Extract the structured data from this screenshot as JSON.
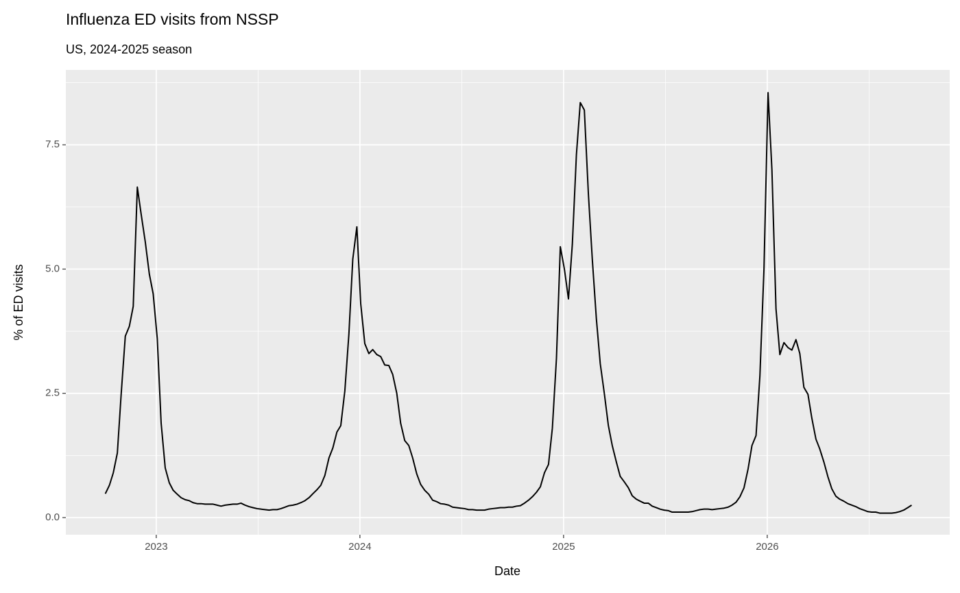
{
  "chart_data": {
    "type": "line",
    "title": "Influenza ED visits from NSSP",
    "subtitle": "US, 2024-2025 season",
    "x_label": "Date",
    "y_label": "% of ED visits",
    "color": "#000000",
    "grid": true,
    "xlim": [
      2022.556,
      2026.896
    ],
    "ylim": [
      -0.345,
      9.007
    ],
    "xticks": [
      2023,
      2024,
      2025,
      2026
    ],
    "yticks": [
      {
        "value": 0,
        "label": "0.0"
      },
      2.5,
      {
        "value": 5,
        "label": "5.0"
      },
      7.5
    ],
    "xminor": [
      2023.5,
      2024.5,
      2025.5,
      2026.5
    ],
    "yminor": [
      1.25,
      3.75,
      6.25,
      8.75
    ],
    "x": [
      2022.75,
      2022.77,
      2022.789,
      2022.809,
      2022.828,
      2022.848,
      2022.868,
      2022.887,
      2022.907,
      2022.926,
      2022.946,
      2022.966,
      2022.985,
      2023.005,
      2023.024,
      2023.044,
      2023.064,
      2023.083,
      2023.103,
      2023.122,
      2023.142,
      2023.162,
      2023.181,
      2023.201,
      2023.22,
      2023.24,
      2023.26,
      2023.279,
      2023.299,
      2023.318,
      2023.338,
      2023.358,
      2023.377,
      2023.397,
      2023.416,
      2023.436,
      2023.456,
      2023.475,
      2023.495,
      2023.514,
      2023.534,
      2023.554,
      2023.573,
      2023.593,
      2023.612,
      2023.632,
      2023.652,
      2023.671,
      2023.691,
      2023.71,
      2023.73,
      2023.75,
      2023.769,
      2023.789,
      2023.808,
      2023.828,
      2023.848,
      2023.867,
      2023.887,
      2023.906,
      2023.926,
      2023.946,
      2023.965,
      2023.985,
      2024.004,
      2024.024,
      2024.044,
      2024.063,
      2024.083,
      2024.102,
      2024.122,
      2024.142,
      2024.161,
      2024.181,
      2024.2,
      2024.22,
      2024.24,
      2024.259,
      2024.279,
      2024.298,
      2024.318,
      2024.338,
      2024.357,
      2024.377,
      2024.396,
      2024.416,
      2024.436,
      2024.455,
      2024.475,
      2024.494,
      2024.514,
      2024.534,
      2024.553,
      2024.573,
      2024.592,
      2024.612,
      2024.632,
      2024.651,
      2024.671,
      2024.69,
      2024.71,
      2024.73,
      2024.749,
      2024.769,
      2024.788,
      2024.808,
      2024.828,
      2024.847,
      2024.867,
      2024.886,
      2024.906,
      2024.926,
      2024.945,
      2024.965,
      2024.984,
      2025.004,
      2025.024,
      2025.043,
      2025.063,
      2025.082,
      2025.102,
      2025.122,
      2025.141,
      2025.161,
      2025.18,
      2025.2,
      2025.22,
      2025.239,
      2025.259,
      2025.278,
      2025.298,
      2025.318,
      2025.337,
      2025.357,
      2025.376,
      2025.396,
      2025.416,
      2025.435,
      2025.455,
      2025.474,
      2025.494,
      2025.514,
      2025.533,
      2025.553,
      2025.572,
      2025.592,
      2025.612,
      2025.631,
      2025.651,
      2025.67,
      2025.69,
      2025.71,
      2025.729,
      2025.749,
      2025.768,
      2025.788,
      2025.808,
      2025.827,
      2025.847,
      2025.866,
      2025.886,
      2025.906,
      2025.925,
      2025.945,
      2025.964,
      2025.984,
      2026.004,
      2026.023,
      2026.043,
      2026.062,
      2026.082,
      2026.102,
      2026.121,
      2026.141,
      2026.16,
      2026.18,
      2026.2,
      2026.219,
      2026.239,
      2026.258,
      2026.278,
      2026.298,
      2026.317,
      2026.337,
      2026.356,
      2026.376,
      2026.396,
      2026.415,
      2026.435,
      2026.454,
      2026.474,
      2026.494,
      2026.513,
      2026.533,
      2026.552,
      2026.572,
      2026.592,
      2026.611,
      2026.631,
      2026.65,
      2026.67,
      2026.69,
      2026.709
    ],
    "values": [
      0.48,
      0.65,
      0.9,
      1.3,
      2.5,
      3.65,
      3.85,
      4.25,
      6.65,
      6.1,
      5.55,
      4.9,
      4.5,
      3.6,
      1.9,
      1.0,
      0.7,
      0.55,
      0.47,
      0.4,
      0.36,
      0.34,
      0.3,
      0.28,
      0.28,
      0.27,
      0.27,
      0.27,
      0.25,
      0.23,
      0.25,
      0.26,
      0.27,
      0.27,
      0.29,
      0.25,
      0.22,
      0.2,
      0.18,
      0.17,
      0.16,
      0.15,
      0.16,
      0.16,
      0.18,
      0.21,
      0.24,
      0.25,
      0.27,
      0.3,
      0.34,
      0.4,
      0.48,
      0.56,
      0.65,
      0.85,
      1.2,
      1.4,
      1.72,
      1.85,
      2.55,
      3.7,
      5.2,
      5.85,
      4.3,
      3.5,
      3.3,
      3.38,
      3.28,
      3.24,
      3.07,
      3.06,
      2.88,
      2.5,
      1.9,
      1.55,
      1.45,
      1.2,
      0.88,
      0.67,
      0.55,
      0.47,
      0.35,
      0.32,
      0.28,
      0.27,
      0.25,
      0.21,
      0.2,
      0.19,
      0.18,
      0.16,
      0.16,
      0.15,
      0.15,
      0.15,
      0.17,
      0.18,
      0.19,
      0.2,
      0.2,
      0.21,
      0.21,
      0.23,
      0.24,
      0.29,
      0.35,
      0.42,
      0.51,
      0.62,
      0.9,
      1.07,
      1.8,
      3.2,
      5.45,
      5.0,
      4.4,
      5.5,
      7.3,
      8.35,
      8.2,
      6.5,
      5.2,
      4.0,
      3.1,
      2.5,
      1.85,
      1.45,
      1.12,
      0.83,
      0.72,
      0.6,
      0.44,
      0.37,
      0.33,
      0.29,
      0.29,
      0.23,
      0.2,
      0.17,
      0.15,
      0.14,
      0.11,
      0.11,
      0.11,
      0.11,
      0.11,
      0.12,
      0.14,
      0.16,
      0.17,
      0.17,
      0.16,
      0.17,
      0.18,
      0.19,
      0.21,
      0.25,
      0.31,
      0.42,
      0.6,
      0.98,
      1.45,
      1.65,
      2.85,
      5.0,
      8.55,
      7.0,
      4.2,
      3.28,
      3.52,
      3.42,
      3.37,
      3.58,
      3.3,
      2.62,
      2.48,
      2.0,
      1.58,
      1.38,
      1.12,
      0.82,
      0.58,
      0.43,
      0.37,
      0.33,
      0.28,
      0.25,
      0.22,
      0.18,
      0.15,
      0.12,
      0.11,
      0.11,
      0.09,
      0.09,
      0.09,
      0.09,
      0.1,
      0.12,
      0.15,
      0.2,
      0.25
    ]
  }
}
